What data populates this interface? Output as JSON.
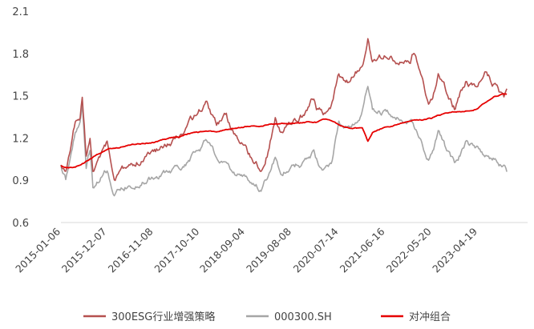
{
  "chart_data": {
    "type": "line",
    "title": "",
    "xlabel": "",
    "ylabel": "",
    "ylim": [
      0.6,
      2.1
    ],
    "yticks": [
      "0.6",
      "0.9",
      "1.2",
      "1.5",
      "1.8",
      "2.1"
    ],
    "xticks": [
      "2015-01-06",
      "2015-12-07",
      "2016-11-08",
      "2017-10-10",
      "2018-09-04",
      "2019-08-08",
      "2020-07-14",
      "2021-06-16",
      "2022-05-20",
      "2023-04-19"
    ],
    "grid": false,
    "legend": "bottom",
    "series": [
      {
        "name": "300ESG行业增强策略",
        "color": "#b5504f",
        "points": [
          [
            "2015-01-06",
            1.0
          ],
          [
            "2015-02-10",
            0.96
          ],
          [
            "2015-03-15",
            1.1
          ],
          [
            "2015-04-20",
            1.3
          ],
          [
            "2015-05-25",
            1.33
          ],
          [
            "2015-06-10",
            1.48
          ],
          [
            "2015-07-08",
            1.05
          ],
          [
            "2015-08-05",
            1.18
          ],
          [
            "2015-08-26",
            0.97
          ],
          [
            "2015-10-15",
            1.04
          ],
          [
            "2015-12-07",
            1.14
          ],
          [
            "2016-01-28",
            0.91
          ],
          [
            "2016-04-15",
            0.98
          ],
          [
            "2016-07-15",
            1.04
          ],
          [
            "2016-11-08",
            1.08
          ],
          [
            "2017-01-20",
            1.14
          ],
          [
            "2017-04-20",
            1.2
          ],
          [
            "2017-07-20",
            1.29
          ],
          [
            "2017-10-10",
            1.38
          ],
          [
            "2017-11-22",
            1.47
          ],
          [
            "2018-02-08",
            1.28
          ],
          [
            "2018-04-20",
            1.34
          ],
          [
            "2018-06-20",
            1.22
          ],
          [
            "2018-09-04",
            1.11
          ],
          [
            "2018-12-28",
            1.0
          ],
          [
            "2019-02-25",
            1.15
          ],
          [
            "2019-04-10",
            1.35
          ],
          [
            "2019-05-20",
            1.25
          ],
          [
            "2019-08-08",
            1.32
          ],
          [
            "2019-11-20",
            1.38
          ],
          [
            "2020-01-15",
            1.47
          ],
          [
            "2020-02-03",
            1.4
          ],
          [
            "2020-03-23",
            1.38
          ],
          [
            "2020-05-20",
            1.45
          ],
          [
            "2020-07-14",
            1.65
          ],
          [
            "2020-09-30",
            1.6
          ],
          [
            "2020-12-31",
            1.72
          ],
          [
            "2021-02-10",
            1.9
          ],
          [
            "2021-03-15",
            1.75
          ],
          [
            "2021-06-16",
            1.78
          ],
          [
            "2021-09-30",
            1.76
          ],
          [
            "2021-12-15",
            1.74
          ],
          [
            "2022-01-10",
            1.82
          ],
          [
            "2022-03-15",
            1.62
          ],
          [
            "2022-04-26",
            1.42
          ],
          [
            "2022-05-20",
            1.45
          ],
          [
            "2022-07-05",
            1.65
          ],
          [
            "2022-10-31",
            1.42
          ],
          [
            "2023-01-20",
            1.6
          ],
          [
            "2023-04-19",
            1.58
          ],
          [
            "2023-06-15",
            1.66
          ],
          [
            "2023-08-15",
            1.58
          ],
          [
            "2023-10-25",
            1.45
          ],
          [
            "2023-11-15",
            1.55
          ]
        ]
      },
      {
        "name": "000300.SH",
        "color": "#a6a6a6",
        "points": [
          [
            "2015-01-06",
            1.0
          ],
          [
            "2015-02-10",
            0.9
          ],
          [
            "2015-03-15",
            1.05
          ],
          [
            "2015-04-20",
            1.25
          ],
          [
            "2015-05-25",
            1.3
          ],
          [
            "2015-06-10",
            1.45
          ],
          [
            "2015-07-08",
            1.0
          ],
          [
            "2015-08-05",
            1.12
          ],
          [
            "2015-08-26",
            0.85
          ],
          [
            "2015-10-15",
            0.92
          ],
          [
            "2015-12-07",
            0.98
          ],
          [
            "2016-01-28",
            0.8
          ],
          [
            "2016-04-15",
            0.85
          ],
          [
            "2016-07-15",
            0.88
          ],
          [
            "2016-11-08",
            0.92
          ],
          [
            "2017-01-20",
            0.94
          ],
          [
            "2017-04-20",
            0.97
          ],
          [
            "2017-07-20",
            1.04
          ],
          [
            "2017-10-10",
            1.12
          ],
          [
            "2017-11-22",
            1.17
          ],
          [
            "2018-02-08",
            1.05
          ],
          [
            "2018-04-20",
            1.02
          ],
          [
            "2018-06-20",
            0.95
          ],
          [
            "2018-09-04",
            0.9
          ],
          [
            "2018-12-28",
            0.83
          ],
          [
            "2019-02-25",
            0.95
          ],
          [
            "2019-04-10",
            1.07
          ],
          [
            "2019-05-20",
            0.97
          ],
          [
            "2019-08-08",
            1.0
          ],
          [
            "2019-11-20",
            1.03
          ],
          [
            "2020-01-15",
            1.1
          ],
          [
            "2020-02-03",
            1.04
          ],
          [
            "2020-03-23",
            0.97
          ],
          [
            "2020-05-20",
            1.03
          ],
          [
            "2020-07-14",
            1.3
          ],
          [
            "2020-09-30",
            1.25
          ],
          [
            "2020-12-31",
            1.4
          ],
          [
            "2021-02-10",
            1.58
          ],
          [
            "2021-03-15",
            1.4
          ],
          [
            "2021-06-16",
            1.38
          ],
          [
            "2021-09-30",
            1.33
          ],
          [
            "2021-12-15",
            1.32
          ],
          [
            "2022-01-10",
            1.28
          ],
          [
            "2022-03-15",
            1.15
          ],
          [
            "2022-04-26",
            1.05
          ],
          [
            "2022-05-20",
            1.08
          ],
          [
            "2022-07-05",
            1.22
          ],
          [
            "2022-10-31",
            1.0
          ],
          [
            "2023-01-20",
            1.15
          ],
          [
            "2023-04-19",
            1.1
          ],
          [
            "2023-06-15",
            1.07
          ],
          [
            "2023-08-15",
            1.05
          ],
          [
            "2023-10-25",
            1.0
          ],
          [
            "2023-11-15",
            0.96
          ]
        ]
      },
      {
        "name": "对冲组合",
        "color": "#e60000",
        "points": [
          [
            "2015-01-06",
            1.0
          ],
          [
            "2015-02-10",
            0.99
          ],
          [
            "2015-04-20",
            0.99
          ],
          [
            "2015-06-10",
            1.02
          ],
          [
            "2015-08-05",
            1.05
          ],
          [
            "2015-10-15",
            1.09
          ],
          [
            "2015-12-07",
            1.12
          ],
          [
            "2016-01-28",
            1.13
          ],
          [
            "2016-04-15",
            1.14
          ],
          [
            "2016-07-15",
            1.16
          ],
          [
            "2016-11-08",
            1.17
          ],
          [
            "2017-01-20",
            1.19
          ],
          [
            "2017-04-20",
            1.21
          ],
          [
            "2017-07-20",
            1.23
          ],
          [
            "2017-10-10",
            1.24
          ],
          [
            "2017-11-22",
            1.25
          ],
          [
            "2018-02-08",
            1.24
          ],
          [
            "2018-04-20",
            1.26
          ],
          [
            "2018-06-20",
            1.27
          ],
          [
            "2018-09-04",
            1.28
          ],
          [
            "2018-12-28",
            1.29
          ],
          [
            "2019-02-25",
            1.3
          ],
          [
            "2019-04-10",
            1.3
          ],
          [
            "2019-05-20",
            1.3
          ],
          [
            "2019-08-08",
            1.31
          ],
          [
            "2019-11-20",
            1.31
          ],
          [
            "2020-01-15",
            1.31
          ],
          [
            "2020-02-03",
            1.31
          ],
          [
            "2020-03-23",
            1.33
          ],
          [
            "2020-05-20",
            1.32
          ],
          [
            "2020-07-14",
            1.29
          ],
          [
            "2020-09-30",
            1.27
          ],
          [
            "2020-12-31",
            1.27
          ],
          [
            "2021-02-10",
            1.18
          ],
          [
            "2021-03-15",
            1.24
          ],
          [
            "2021-06-16",
            1.28
          ],
          [
            "2021-09-30",
            1.3
          ],
          [
            "2021-12-15",
            1.32
          ],
          [
            "2022-01-10",
            1.33
          ],
          [
            "2022-03-15",
            1.33
          ],
          [
            "2022-04-26",
            1.34
          ],
          [
            "2022-05-20",
            1.34
          ],
          [
            "2022-07-05",
            1.36
          ],
          [
            "2022-10-31",
            1.38
          ],
          [
            "2023-01-20",
            1.39
          ],
          [
            "2023-04-19",
            1.41
          ],
          [
            "2023-06-15",
            1.45
          ],
          [
            "2023-08-15",
            1.49
          ],
          [
            "2023-10-25",
            1.51
          ],
          [
            "2023-11-15",
            1.51
          ]
        ]
      }
    ]
  }
}
